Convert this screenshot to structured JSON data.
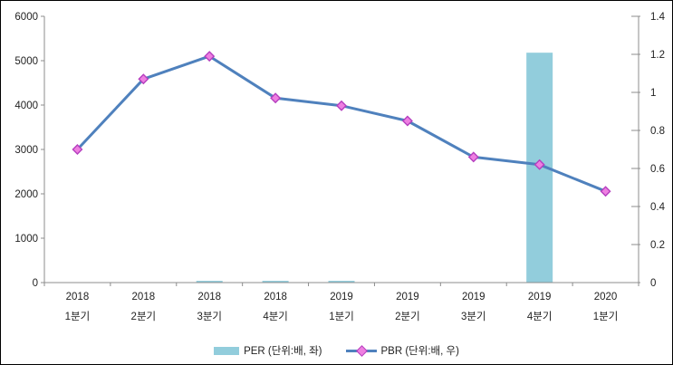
{
  "chart_data": {
    "type": "bar+line combo",
    "title": "",
    "categories": [
      {
        "line1": "2018",
        "line2": "1분기"
      },
      {
        "line1": "2018",
        "line2": "2분기"
      },
      {
        "line1": "2018",
        "line2": "3분기"
      },
      {
        "line1": "2018",
        "line2": "4분기"
      },
      {
        "line1": "2019",
        "line2": "1분기"
      },
      {
        "line1": "2019",
        "line2": "2분기"
      },
      {
        "line1": "2019",
        "line2": "3분기"
      },
      {
        "line1": "2019",
        "line2": "4분기"
      },
      {
        "line1": "2020",
        "line2": "1분기"
      }
    ],
    "series": [
      {
        "name": "PER (단위:배, 좌)",
        "type": "bar",
        "axis": "left",
        "values": [
          0,
          0,
          40,
          40,
          40,
          0,
          0,
          5180,
          0
        ],
        "color": "#92CDDC"
      },
      {
        "name": "PBR (단위:배, 우)",
        "type": "line",
        "axis": "right",
        "values": [
          0.7,
          1.07,
          1.19,
          0.97,
          0.93,
          0.85,
          0.66,
          0.62,
          0.48
        ],
        "color": "#4F81BD",
        "marker": "diamond",
        "marker_fill": "#EE7FE1",
        "marker_stroke": "#B53FBF"
      }
    ],
    "left_axis": {
      "ticks": [
        0,
        1000,
        2000,
        3000,
        4000,
        5000,
        6000
      ],
      "range": [
        0,
        6000
      ]
    },
    "right_axis": {
      "ticks": [
        0,
        0.2,
        0.4,
        0.6,
        0.8,
        1,
        1.2,
        1.4
      ],
      "range": [
        0,
        1.4
      ]
    },
    "grid": false,
    "legend_position": "bottom-center",
    "axis_color": "#8C8C8C",
    "label_color": "#222222"
  }
}
